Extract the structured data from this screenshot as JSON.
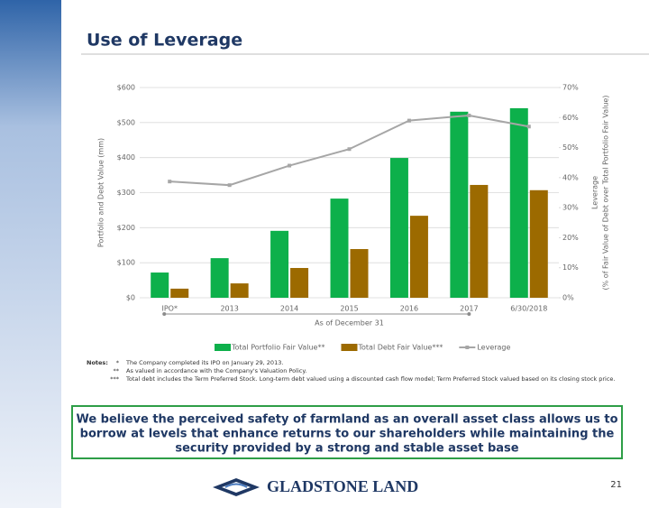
{
  "header": {
    "title": "Use of Leverage"
  },
  "chart_data": {
    "type": "bar",
    "categories": [
      "IPO*",
      "2013",
      "2014",
      "2015",
      "2016",
      "2017",
      "6/30/2018"
    ],
    "series": [
      {
        "name": "Total Portfolio Fair Value**",
        "color": "#0db04b",
        "values": [
          72,
          113,
          191,
          283,
          399,
          531,
          541
        ]
      },
      {
        "name": "Total Debt Fair Value***",
        "color": "#9c6a00",
        "values": [
          26,
          41,
          85,
          139,
          234,
          322,
          307
        ]
      },
      {
        "name": "Leverage",
        "color": "#a6a6a6",
        "type": "line",
        "axis": "y2",
        "values": [
          38.7,
          37.5,
          44,
          49.5,
          59,
          60.7,
          57
        ]
      }
    ],
    "ylabel": "Portfolio and Debt Value (mm)",
    "y2label": [
      "Leverage",
      "(% of Fair Value of Debt over Total Portfolio Fair Value)"
    ],
    "xlabel": "As of December 31",
    "ylim": [
      0,
      600
    ],
    "yticks": [
      {
        "value": 0,
        "label": "$0"
      },
      {
        "value": 100,
        "label": "$100"
      },
      {
        "value": 200,
        "label": "$200"
      },
      {
        "value": 300,
        "label": "$300"
      },
      {
        "value": 400,
        "label": "$400"
      },
      {
        "value": 500,
        "label": "$500"
      },
      {
        "value": 600,
        "label": "$600"
      }
    ],
    "y2lim": [
      0,
      70
    ],
    "y2ticks": [
      {
        "value": 0,
        "label": "0%"
      },
      {
        "value": 10,
        "label": "10%"
      },
      {
        "value": 20,
        "label": "20%"
      },
      {
        "value": 30,
        "label": "30%"
      },
      {
        "value": 40,
        "label": "40%"
      },
      {
        "value": 50,
        "label": "50%"
      },
      {
        "value": 60,
        "label": "60%"
      },
      {
        "value": 70,
        "label": "70%"
      }
    ],
    "grid": true,
    "legend": "bottom"
  },
  "notes": {
    "label": "Notes:",
    "items": [
      {
        "marker": "*",
        "text": "The Company completed its IPO on January 29, 2013."
      },
      {
        "marker": "**",
        "text": "As valued in accordance with the Company's Valuation Policy."
      },
      {
        "marker": "***",
        "text": "Total debt includes the Term Preferred Stock. Long-term debt valued using a discounted cash flow model; Term Preferred Stock valued based on its closing stock price."
      }
    ]
  },
  "callout": [
    "We believe the perceived safety of farmland as an overall asset class allows us to",
    "borrow at levels that enhance returns to our shareholders while maintaining the",
    "security provided by a strong and stable asset base"
  ],
  "footer": {
    "logo": "GLADSTONE LAND",
    "page": "21"
  }
}
